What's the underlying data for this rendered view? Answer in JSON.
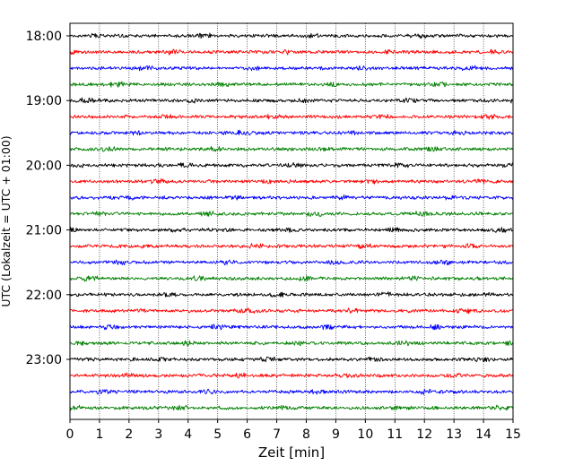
{
  "chart_data": {
    "type": "line",
    "title": "",
    "xlabel": "Zeit  [min]",
    "ylabel": "UTC (Lokalzeit = UTC + 01:00)",
    "xlim": [
      0,
      15
    ],
    "x_ticks": [
      "0",
      "1",
      "2",
      "3",
      "4",
      "5",
      "6",
      "7",
      "8",
      "9",
      "10",
      "11",
      "12",
      "13",
      "14",
      "15"
    ],
    "y_ticks": [
      "18:00",
      "19:00",
      "20:00",
      "21:00",
      "22:00",
      "23:00"
    ],
    "grid": "vertical dotted at each minute",
    "legend": "none",
    "trace_interval_minutes": 15,
    "trace_colors": [
      "#000000",
      "#ff0000",
      "#0000ff",
      "#008000"
    ],
    "traces": [
      {
        "start": "18:00",
        "color": "#000000"
      },
      {
        "start": "18:15",
        "color": "#ff0000"
      },
      {
        "start": "18:30",
        "color": "#0000ff"
      },
      {
        "start": "18:45",
        "color": "#008000"
      },
      {
        "start": "19:00",
        "color": "#000000"
      },
      {
        "start": "19:15",
        "color": "#ff0000"
      },
      {
        "start": "19:30",
        "color": "#0000ff"
      },
      {
        "start": "19:45",
        "color": "#008000"
      },
      {
        "start": "20:00",
        "color": "#000000"
      },
      {
        "start": "20:15",
        "color": "#ff0000"
      },
      {
        "start": "20:30",
        "color": "#0000ff"
      },
      {
        "start": "20:45",
        "color": "#008000"
      },
      {
        "start": "21:00",
        "color": "#000000"
      },
      {
        "start": "21:15",
        "color": "#ff0000"
      },
      {
        "start": "21:30",
        "color": "#0000ff"
      },
      {
        "start": "21:45",
        "color": "#008000"
      },
      {
        "start": "22:00",
        "color": "#000000"
      },
      {
        "start": "22:15",
        "color": "#ff0000"
      },
      {
        "start": "22:30",
        "color": "#0000ff"
      },
      {
        "start": "22:45",
        "color": "#008000"
      },
      {
        "start": "23:00",
        "color": "#000000"
      },
      {
        "start": "23:15",
        "color": "#ff0000"
      },
      {
        "start": "23:30",
        "color": "#0000ff"
      },
      {
        "start": "23:45",
        "color": "#008000"
      }
    ]
  }
}
